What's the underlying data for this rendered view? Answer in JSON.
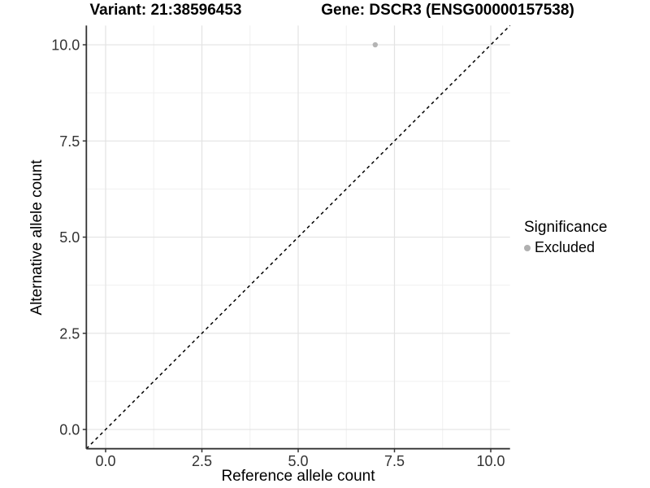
{
  "titles": {
    "variant": "Variant: 21:38596453",
    "gene": "Gene: DSCR3 (ENSG00000157538)"
  },
  "legend": {
    "title": "Significance",
    "items": [
      {
        "label": "Excluded",
        "color": "#b0b0b0",
        "marker": "circle"
      }
    ]
  },
  "chart_data": {
    "type": "scatter",
    "xlabel": "Reference allele count",
    "ylabel": "Alternative allele count",
    "xlim": [
      -0.5,
      10.5
    ],
    "ylim": [
      -0.5,
      10.5
    ],
    "x_ticks": [
      0.0,
      2.5,
      5.0,
      7.5,
      10.0
    ],
    "x_tick_labels": [
      "0.0",
      "2.5",
      "5.0",
      "7.5",
      "10.0"
    ],
    "y_ticks": [
      0.0,
      2.5,
      5.0,
      7.5,
      10.0
    ],
    "y_tick_labels": [
      "0.0",
      "2.5",
      "5.0",
      "7.5",
      "10.0"
    ],
    "minor_ticks": [
      1.25,
      3.75,
      6.25,
      8.75
    ],
    "grid": true,
    "legend_position": "right",
    "series": [
      {
        "name": "Excluded",
        "color": "#b4b4b4",
        "marker_radius": 3.2,
        "points": [
          {
            "x": 7,
            "y": 10
          }
        ]
      }
    ],
    "reference_line": {
      "type": "identity",
      "from": -0.5,
      "to": 10.5,
      "style": "dashed",
      "color": "#000000"
    }
  },
  "colors": {
    "major_grid": "#e3e3e3",
    "minor_grid": "#f0f0f0",
    "axis_line": "#333333",
    "tick_text": "#333333"
  }
}
